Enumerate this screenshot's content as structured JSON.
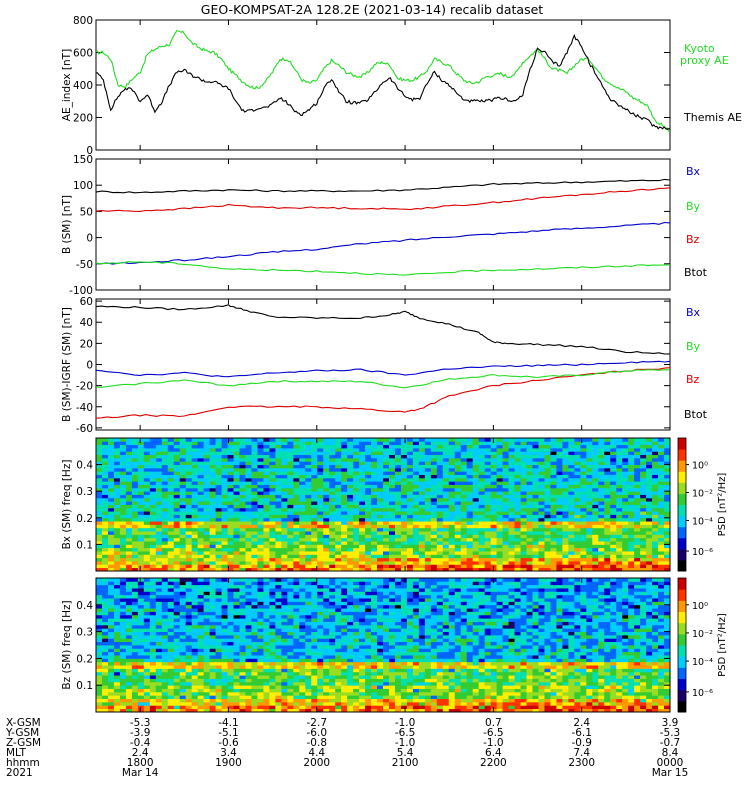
{
  "title": "GEO-KOMPSAT-2A 128.2E (2021-03-14) recalib dataset",
  "colors": {
    "black": "#000000",
    "red": "#dd0000",
    "green": "#22dd22",
    "blue": "#0000cc",
    "colorbar": [
      "#000000",
      "#1a0066",
      "#0000cc",
      "#0066ff",
      "#00ccff",
      "#00e0b0",
      "#33cc33",
      "#99dd22",
      "#ffee00",
      "#ff9900",
      "#ff3300",
      "#cc0000"
    ]
  },
  "chart_data": [
    {
      "type": "line",
      "ylabel": "AE_index [nT]",
      "ylim": [
        0,
        800
      ],
      "yticks": [
        "0",
        "200",
        "400",
        "600",
        "800"
      ],
      "xlim": [
        1730,
        2400
      ],
      "legend": [
        "Kyoto proxy AE",
        "Themis AE"
      ],
      "series": [
        {
          "name": "Kyoto proxy AE",
          "color": "green",
          "x": [
            1730,
            1735,
            1740,
            1745,
            1750,
            1755,
            1800,
            1805,
            1810,
            1815,
            1820,
            1825,
            1830,
            1835,
            1840,
            1845,
            1850,
            1855,
            1900,
            1905,
            1910,
            1915,
            1920,
            1925,
            1930,
            1935,
            1940,
            1945,
            1950,
            1955,
            2000,
            2005,
            2010,
            2015,
            2020,
            2025,
            2030,
            2035,
            2040,
            2045,
            2050,
            2055,
            2100,
            2105,
            2110,
            2115,
            2120,
            2125,
            2130,
            2135,
            2140,
            2145,
            2150,
            2155,
            2200,
            2205,
            2210,
            2215,
            2220,
            2225,
            2230,
            2235,
            2240,
            2245,
            2250,
            2255,
            2300,
            2305,
            2310,
            2315,
            2320,
            2325,
            2330,
            2335,
            2340,
            2345,
            2350,
            2355,
            2400
          ],
          "values": [
            600,
            600,
            560,
            400,
            390,
            440,
            480,
            590,
            620,
            640,
            650,
            730,
            720,
            660,
            630,
            610,
            600,
            560,
            500,
            460,
            420,
            390,
            380,
            420,
            480,
            560,
            560,
            500,
            430,
            410,
            430,
            500,
            550,
            520,
            480,
            460,
            450,
            480,
            530,
            540,
            520,
            440,
            430,
            430,
            450,
            490,
            560,
            540,
            520,
            470,
            430,
            410,
            420,
            450,
            460,
            470,
            450,
            470,
            540,
            580,
            620,
            560,
            500,
            490,
            470,
            520,
            560,
            560,
            500,
            440,
            410,
            380,
            360,
            320,
            300,
            270,
            180,
            150,
            110
          ]
        },
        {
          "name": "Themis AE",
          "color": "black",
          "x": [
            1730,
            1735,
            1740,
            1745,
            1750,
            1755,
            1800,
            1805,
            1810,
            1815,
            1820,
            1825,
            1830,
            1835,
            1840,
            1845,
            1850,
            1855,
            1900,
            1905,
            1910,
            1915,
            1920,
            1925,
            1930,
            1935,
            1940,
            1945,
            1950,
            1955,
            2000,
            2005,
            2010,
            2015,
            2020,
            2025,
            2030,
            2035,
            2040,
            2045,
            2050,
            2055,
            2100,
            2105,
            2110,
            2115,
            2120,
            2125,
            2130,
            2135,
            2140,
            2145,
            2150,
            2155,
            2200,
            2205,
            2210,
            2215,
            2220,
            2225,
            2230,
            2235,
            2240,
            2245,
            2250,
            2255,
            2300,
            2305,
            2310,
            2315,
            2320,
            2325,
            2330,
            2335,
            2340,
            2345,
            2350,
            2355,
            2400
          ],
          "values": [
            480,
            430,
            250,
            330,
            380,
            370,
            300,
            340,
            240,
            300,
            400,
            480,
            490,
            460,
            440,
            420,
            420,
            400,
            380,
            300,
            240,
            240,
            260,
            260,
            280,
            320,
            290,
            240,
            220,
            250,
            290,
            380,
            440,
            360,
            300,
            290,
            290,
            310,
            360,
            420,
            440,
            380,
            330,
            310,
            320,
            410,
            480,
            430,
            400,
            350,
            310,
            300,
            300,
            300,
            310,
            320,
            310,
            300,
            340,
            500,
            620,
            600,
            540,
            520,
            600,
            700,
            640,
            540,
            460,
            380,
            310,
            280,
            250,
            220,
            200,
            180,
            140,
            140,
            130
          ]
        }
      ]
    },
    {
      "type": "line",
      "ylabel": "B (SM) [nT]",
      "ylim": [
        -100,
        150
      ],
      "yticks": [
        "-100",
        "-50",
        "0",
        "50",
        "100",
        "150"
      ],
      "xlim": [
        1730,
        2400
      ],
      "legend": [
        "Bx",
        "By",
        "Bz",
        "Btot"
      ],
      "series": [
        {
          "name": "Btot",
          "color": "black",
          "x": [
            1730,
            1800,
            1830,
            1900,
            1930,
            2000,
            2030,
            2100,
            2130,
            2200,
            2230,
            2300,
            2330,
            2400
          ],
          "values": [
            88,
            86,
            89,
            91,
            89,
            89,
            89,
            91,
            96,
            102,
            104,
            106,
            108,
            110
          ]
        },
        {
          "name": "Bz",
          "color": "red",
          "x": [
            1730,
            1800,
            1830,
            1900,
            1930,
            2000,
            2030,
            2100,
            2130,
            2200,
            2230,
            2300,
            2330,
            2400
          ],
          "values": [
            51,
            51,
            55,
            62,
            57,
            57,
            56,
            54,
            60,
            67,
            75,
            82,
            89,
            95
          ]
        },
        {
          "name": "Bx",
          "color": "blue",
          "x": [
            1730,
            1800,
            1830,
            1900,
            1930,
            2000,
            2030,
            2100,
            2130,
            2200,
            2230,
            2300,
            2330,
            2400
          ],
          "values": [
            -50,
            -48,
            -43,
            -36,
            -28,
            -22,
            -12,
            -5,
            2,
            7,
            13,
            18,
            23,
            28
          ]
        },
        {
          "name": "By",
          "color": "green",
          "x": [
            1730,
            1800,
            1830,
            1900,
            1930,
            2000,
            2030,
            2100,
            2130,
            2200,
            2230,
            2300,
            2330,
            2400
          ],
          "values": [
            -50,
            -46,
            -50,
            -60,
            -62,
            -64,
            -68,
            -72,
            -66,
            -62,
            -60,
            -57,
            -54,
            -52
          ]
        }
      ]
    },
    {
      "type": "line",
      "ylabel": "B (SM)-IGRF (SM) [nT]",
      "ylim": [
        -62,
        62
      ],
      "yticks": [
        "-60",
        "-40",
        "-20",
        "0",
        "20",
        "40",
        "60"
      ],
      "xlim": [
        1730,
        2400
      ],
      "legend": [
        "Bx",
        "By",
        "Bz",
        "Btot"
      ],
      "series": [
        {
          "name": "Btot",
          "color": "black",
          "x": [
            1730,
            1800,
            1830,
            1900,
            1910,
            1930,
            2000,
            2030,
            2050,
            2100,
            2110,
            2130,
            2150,
            2200,
            2210,
            2230,
            2300,
            2330,
            2400
          ],
          "values": [
            55,
            54,
            52,
            56,
            52,
            45,
            44,
            44,
            47,
            50,
            44,
            38,
            30,
            21,
            20,
            19,
            17,
            12,
            10
          ]
        },
        {
          "name": "Bz",
          "color": "red",
          "x": [
            1730,
            1800,
            1830,
            1900,
            1930,
            2000,
            2030,
            2100,
            2110,
            2130,
            2200,
            2230,
            2300,
            2330,
            2400
          ],
          "values": [
            -51,
            -48,
            -49,
            -40,
            -40,
            -40,
            -42,
            -45,
            -42,
            -30,
            -20,
            -15,
            -10,
            -6,
            -3
          ]
        },
        {
          "name": "By",
          "color": "green",
          "x": [
            1730,
            1800,
            1830,
            1900,
            1930,
            2000,
            2030,
            2100,
            2130,
            2200,
            2230,
            2300,
            2330,
            2400
          ],
          "values": [
            -22,
            -18,
            -15,
            -20,
            -16,
            -16,
            -16,
            -22,
            -14,
            -10,
            -12,
            -10,
            -6,
            -5
          ]
        },
        {
          "name": "Bx",
          "color": "blue",
          "x": [
            1730,
            1800,
            1830,
            1900,
            1930,
            2000,
            2030,
            2100,
            2130,
            2200,
            2230,
            2300,
            2330,
            2400
          ],
          "values": [
            -5,
            -10,
            -8,
            -12,
            -8,
            -6,
            -5,
            -10,
            -4,
            -2,
            -1,
            0,
            2,
            3
          ]
        }
      ]
    },
    {
      "type": "heatmap",
      "ylabel": "Bx (SM) freq [Hz]",
      "ylim": [
        0,
        0.5
      ],
      "yticks": [
        "0.1",
        "0.2",
        "0.3",
        "0.4"
      ],
      "colorbar_label": "PSD [nT²/Hz]",
      "colorbar_ticks": [
        "10⁰",
        "10⁻²",
        "10⁻⁴",
        "10⁻⁶"
      ]
    },
    {
      "type": "heatmap",
      "ylabel": "Bz (SM) freq [Hz]",
      "ylim": [
        0,
        0.5
      ],
      "yticks": [
        "0.1",
        "0.2",
        "0.3",
        "0.4"
      ],
      "colorbar_label": "PSD [nT²/Hz]",
      "colorbar_ticks": [
        "10⁰",
        "10⁻²",
        "10⁻⁴",
        "10⁻⁶"
      ]
    }
  ],
  "ephemeris": {
    "row_labels": [
      "X-GSM",
      "Y-GSM",
      "Z-GSM",
      "MLT",
      "hhmm",
      "2021"
    ],
    "columns": [
      [
        "-5.3",
        "-3.9",
        "-0.4",
        "2.4",
        "1800",
        "Mar 14"
      ],
      [
        "-4.1",
        "-5.1",
        "-0.6",
        "3.4",
        "1900",
        ""
      ],
      [
        "-2.7",
        "-6.0",
        "-0.8",
        "4.4",
        "2000",
        ""
      ],
      [
        "-1.0",
        "-6.5",
        "-1.0",
        "5.4",
        "2100",
        ""
      ],
      [
        "0.7",
        "-6.5",
        "-1.0",
        "6.4",
        "2200",
        ""
      ],
      [
        "2.4",
        "-6.1",
        "-0.9",
        "7.4",
        "2300",
        ""
      ],
      [
        "3.9",
        "-5.3",
        "-0.7",
        "8.4",
        "0000",
        "Mar 15"
      ]
    ],
    "tick_times": [
      1800,
      1900,
      2000,
      2100,
      2200,
      2300,
      2400
    ]
  }
}
